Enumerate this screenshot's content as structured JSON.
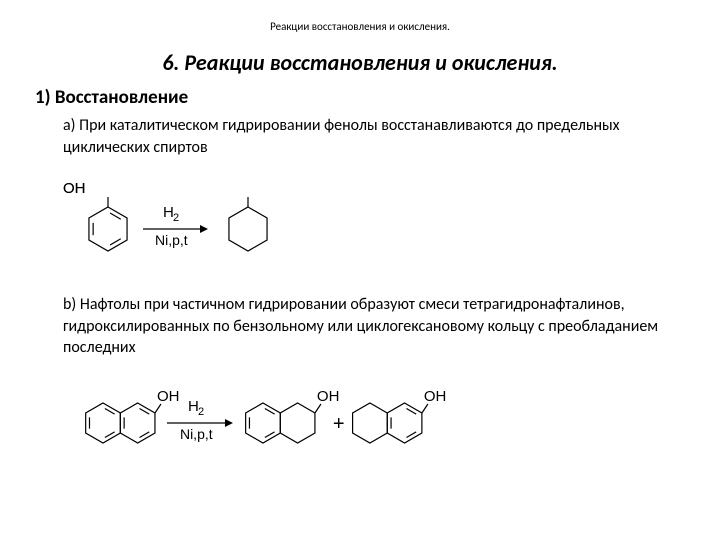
{
  "header_small": "Реакции восстановления и окисления.",
  "main_title": "6.  Реакции восстановления и окисления.",
  "section_title": "1)  Восстановление",
  "item_a": "a)   При каталитическом гидрировании фенолы восстанавливаются до предельных циклических спиртов",
  "item_b": "b)   Нафтолы при частичном гидрировании образуют смеси тетрагидронафталинов, гидроксилированных по бензольному или циклогексановому кольцу с преобладанием последних",
  "labels": {
    "oh": "OH",
    "h2": "H",
    "h2_sub": "2",
    "cond": "Ni,p,t",
    "plus": "+"
  },
  "style": {
    "stroke": "#000000",
    "stroke_width": 1.2,
    "font_family": "Arial, sans-serif",
    "label_size": 15,
    "sub_size": 11,
    "cond_size": 14,
    "plus_size": 20
  }
}
